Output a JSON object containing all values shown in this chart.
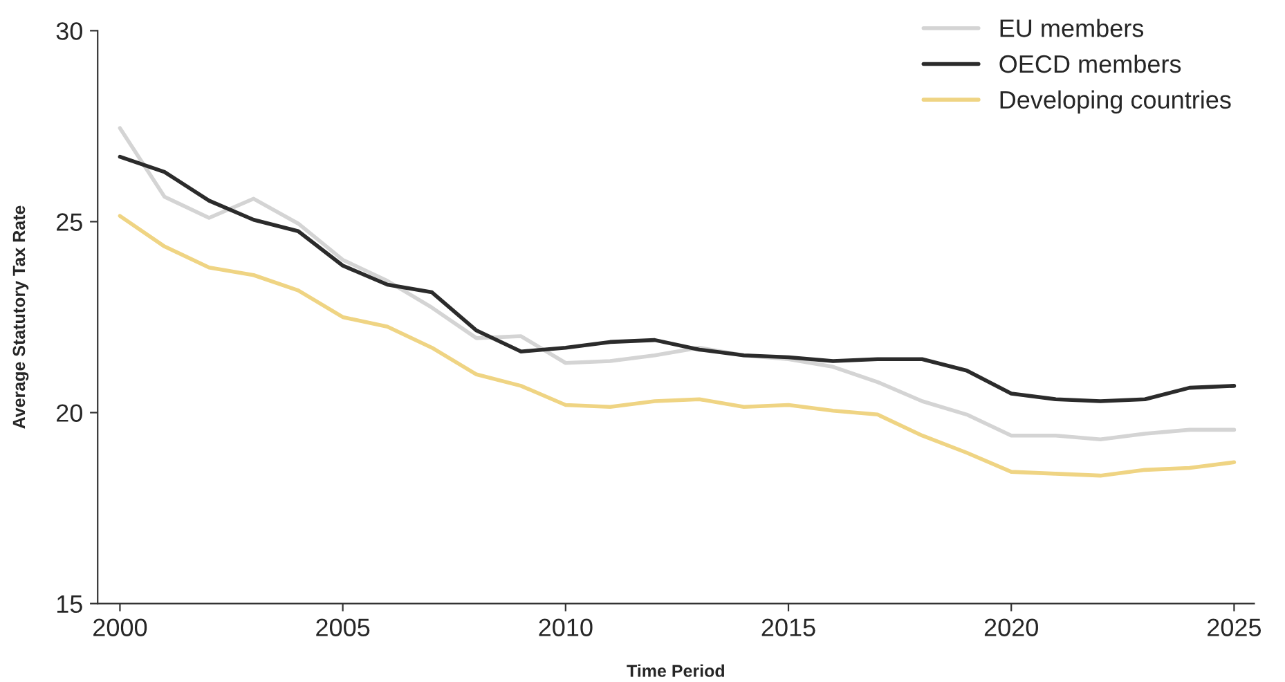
{
  "chart_data": {
    "type": "line",
    "xlabel": "Time Period",
    "ylabel": "Average Statutory Tax Rate",
    "x": [
      2000,
      2001,
      2002,
      2003,
      2004,
      2005,
      2006,
      2007,
      2008,
      2009,
      2010,
      2011,
      2012,
      2013,
      2014,
      2015,
      2016,
      2017,
      2018,
      2019,
      2020,
      2021,
      2022,
      2023,
      2024,
      2025
    ],
    "series": [
      {
        "name": "EU members",
        "color": "#d4d4d4",
        "values": [
          27.45,
          25.65,
          25.1,
          25.6,
          24.95,
          24.0,
          23.45,
          22.75,
          21.95,
          22.0,
          21.3,
          21.35,
          21.5,
          21.7,
          21.5,
          21.4,
          21.2,
          20.8,
          20.3,
          19.95,
          19.4,
          19.4,
          19.3,
          19.45,
          19.55,
          19.55
        ]
      },
      {
        "name": "OECD members",
        "color": "#2b2b2b",
        "values": [
          26.7,
          26.3,
          25.55,
          25.05,
          24.75,
          23.85,
          23.35,
          23.15,
          22.15,
          21.6,
          21.7,
          21.85,
          21.9,
          21.65,
          21.5,
          21.45,
          21.35,
          21.4,
          21.4,
          21.1,
          20.5,
          20.35,
          20.3,
          20.35,
          20.65,
          20.7
        ]
      },
      {
        "name": "Developing countries",
        "color": "#efd483",
        "values": [
          25.15,
          24.35,
          23.8,
          23.6,
          23.2,
          22.5,
          22.25,
          21.7,
          21.0,
          20.7,
          20.2,
          20.15,
          20.3,
          20.35,
          20.15,
          20.2,
          20.05,
          19.95,
          19.4,
          18.95,
          18.45,
          18.4,
          18.35,
          18.5,
          18.55,
          18.7
        ]
      }
    ],
    "xlim": [
      1999.5,
      2025.45
    ],
    "xticks": [
      2000,
      2005,
      2010,
      2015,
      2020,
      2025
    ],
    "ylim": [
      15,
      30
    ],
    "yticks": [
      15,
      20,
      25,
      30
    ],
    "grid": false,
    "legend": "top right"
  }
}
